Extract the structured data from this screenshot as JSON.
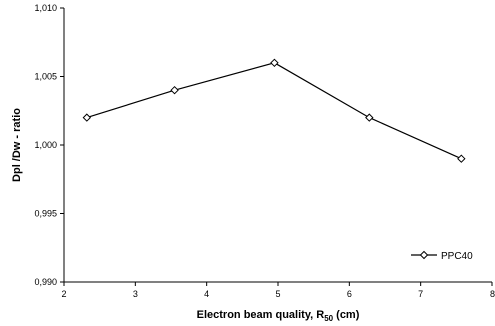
{
  "chart_data": {
    "type": "line",
    "xlabel_main": "Electron beam quality, R",
    "xlabel_sub": "50",
    "xlabel_unit": " (cm)",
    "ylabel": "Dpl /Dw - ratio",
    "xlim": [
      2,
      8
    ],
    "ylim": [
      0.99,
      1.01
    ],
    "x_ticks": [
      2,
      3,
      4,
      5,
      6,
      7,
      8
    ],
    "x_tick_labels": [
      "2",
      "3",
      "4",
      "5",
      "6",
      "7",
      "8"
    ],
    "y_ticks": [
      0.99,
      0.995,
      1.0,
      1.005,
      1.01
    ],
    "y_tick_labels": [
      "0,990",
      "0,995",
      "1,000",
      "1,005",
      "1,010"
    ],
    "grid": false,
    "legend_position": "bottom-right",
    "series": [
      {
        "name": "PPC40",
        "marker": "diamond-open",
        "color": "#000000",
        "x": [
          2.32,
          3.55,
          4.95,
          6.28,
          7.57
        ],
        "y": [
          1.002,
          1.004,
          1.006,
          1.002,
          0.999
        ]
      }
    ]
  }
}
